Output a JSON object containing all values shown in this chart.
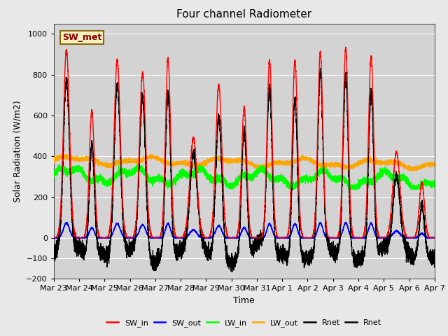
{
  "title": "Four channel Radiometer",
  "xlabel": "Time",
  "ylabel": "Solar Radiation (W/m2)",
  "ylim": [
    -200,
    1050
  ],
  "xlim": [
    0,
    15
  ],
  "fig_bg": "#e8e8e8",
  "plot_bg": "#d3d3d3",
  "annotation_text": "SW_met",
  "annotation_fg": "#8b0000",
  "annotation_bg": "#f5f0c0",
  "annotation_border": "#8b6914",
  "legend_entries": [
    "SW_in",
    "SW_out",
    "LW_in",
    "LW_out",
    "Rnet",
    "Rnet"
  ],
  "legend_colors": [
    "red",
    "blue",
    "lime",
    "orange",
    "black",
    "black"
  ],
  "tick_labels": [
    "Mar 23",
    "Mar 24",
    "Mar 25",
    "Mar 26",
    "Mar 27",
    "Mar 28",
    "Mar 29",
    "Mar 30",
    "Mar 31",
    "Apr 1",
    "Apr 2",
    "Apr 3",
    "Apr 4",
    "Apr 5",
    "Apr 6",
    "Apr 7"
  ],
  "yticks": [
    -200,
    -100,
    0,
    200,
    400,
    600,
    800,
    1000
  ],
  "grid_color": "#ffffff",
  "sw_in_peaks": [
    920,
    620,
    870,
    810,
    880,
    490,
    750,
    640,
    870,
    870,
    910,
    930,
    890,
    420,
    270
  ],
  "sw_in_widths": [
    0.12,
    0.1,
    0.12,
    0.12,
    0.1,
    0.14,
    0.12,
    0.1,
    0.1,
    0.1,
    0.1,
    0.1,
    0.1,
    0.14,
    0.1
  ],
  "night_rnet": -100,
  "seed": 7
}
